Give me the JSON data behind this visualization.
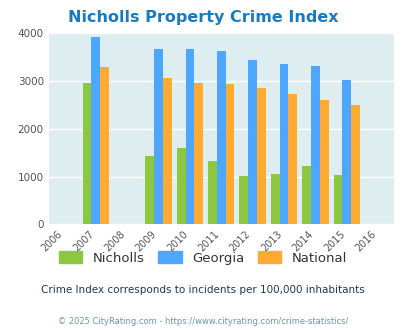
{
  "title": "Nicholls Property Crime Index",
  "years": [
    2006,
    2007,
    2008,
    2009,
    2010,
    2011,
    2012,
    2013,
    2014,
    2015,
    2016
  ],
  "data_years": [
    2007,
    2009,
    2010,
    2011,
    2012,
    2013,
    2014,
    2015
  ],
  "nicholls": [
    2950,
    1430,
    1600,
    1330,
    1020,
    1060,
    1220,
    1040
  ],
  "georgia": [
    3920,
    3670,
    3660,
    3630,
    3440,
    3360,
    3310,
    3010
  ],
  "national": [
    3280,
    3050,
    2960,
    2930,
    2860,
    2730,
    2600,
    2500
  ],
  "nicholls_color": "#8dc63f",
  "georgia_color": "#4da6ff",
  "national_color": "#ffaa33",
  "background_color": "#deeef0",
  "ylim": [
    0,
    4000
  ],
  "yticks": [
    0,
    1000,
    2000,
    3000,
    4000
  ],
  "subtitle": "Crime Index corresponds to incidents per 100,000 inhabitants",
  "footer": "© 2025 CityRating.com - https://www.cityrating.com/crime-statistics/",
  "title_color": "#1a7abf",
  "subtitle_color": "#1a3a5c",
  "footer_color": "#6699aa",
  "bar_width": 0.28
}
